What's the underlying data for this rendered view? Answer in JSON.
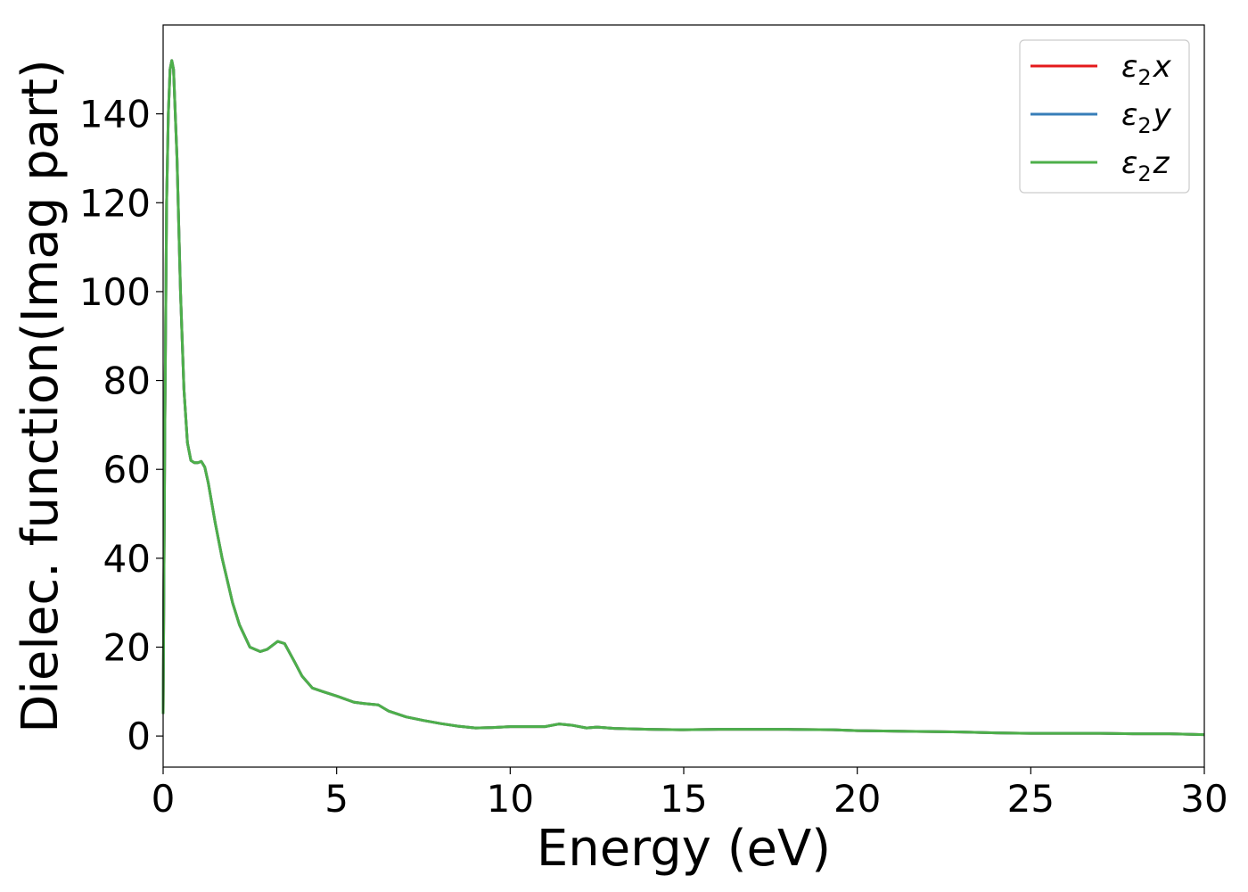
{
  "chart_data": {
    "type": "line",
    "title": "",
    "xlabel": "Energy (eV)",
    "ylabel": "Dielec. function(Imag part)",
    "xlim": [
      0,
      30
    ],
    "ylim": [
      -7,
      160
    ],
    "xticks": [
      0,
      5,
      10,
      15,
      20,
      25,
      30
    ],
    "yticks": [
      0,
      20,
      40,
      60,
      80,
      100,
      120,
      140
    ],
    "grid": false,
    "legend_position": "top-right",
    "series": [
      {
        "name": "ε₂x",
        "legend_base": "ε",
        "legend_sub": "2",
        "legend_suffix": "x",
        "color": "#e41a1c",
        "x": [
          0,
          0.05,
          0.1,
          0.15,
          0.2,
          0.25,
          0.3,
          0.4,
          0.5,
          0.6,
          0.7,
          0.8,
          0.9,
          1.0,
          1.1,
          1.2,
          1.3,
          1.5,
          1.7,
          2.0,
          2.2,
          2.5,
          2.8,
          3.0,
          3.3,
          3.5,
          3.8,
          4.0,
          4.3,
          4.6,
          5.0,
          5.5,
          5.8,
          6.2,
          6.5,
          7.0,
          7.5,
          8.0,
          8.5,
          9.0,
          9.5,
          10.0,
          10.5,
          11.0,
          11.4,
          11.8,
          12.2,
          12.5,
          13.0,
          14.0,
          15.0,
          16.0,
          17.0,
          18.0,
          19.3,
          20.0,
          21.0,
          22.0,
          23.0,
          24.0,
          25.0,
          26.0,
          27.0,
          28.0,
          29.0,
          30.0
        ],
        "y": [
          5,
          70,
          120,
          140,
          150,
          152,
          150,
          130,
          100,
          78,
          66,
          62,
          61.5,
          61.5,
          61.8,
          60.5,
          57,
          48,
          40,
          30,
          25,
          20,
          19,
          19.5,
          21.3,
          20.8,
          16.5,
          13.5,
          10.8,
          10,
          9,
          7.6,
          7.3,
          7.0,
          5.6,
          4.3,
          3.5,
          2.8,
          2.2,
          1.8,
          1.9,
          2.1,
          2.1,
          2.1,
          2.7,
          2.4,
          1.8,
          2.0,
          1.7,
          1.5,
          1.4,
          1.5,
          1.5,
          1.5,
          1.4,
          1.2,
          1.1,
          1.0,
          0.9,
          0.7,
          0.6,
          0.6,
          0.6,
          0.5,
          0.5,
          0.3
        ]
      },
      {
        "name": "ε₂y",
        "legend_base": "ε",
        "legend_sub": "2",
        "legend_suffix": "y",
        "color": "#377eb8",
        "x": [
          0,
          0.05,
          0.1,
          0.15,
          0.2,
          0.25,
          0.3,
          0.4,
          0.5,
          0.6,
          0.7,
          0.8,
          0.9,
          1.0,
          1.1,
          1.2,
          1.3,
          1.5,
          1.7,
          2.0,
          2.2,
          2.5,
          2.8,
          3.0,
          3.3,
          3.5,
          3.8,
          4.0,
          4.3,
          4.6,
          5.0,
          5.5,
          5.8,
          6.2,
          6.5,
          7.0,
          7.5,
          8.0,
          8.5,
          9.0,
          9.5,
          10.0,
          10.5,
          11.0,
          11.4,
          11.8,
          12.2,
          12.5,
          13.0,
          14.0,
          15.0,
          16.0,
          17.0,
          18.0,
          19.3,
          20.0,
          21.0,
          22.0,
          23.0,
          24.0,
          25.0,
          26.0,
          27.0,
          28.0,
          29.0,
          30.0
        ],
        "y": [
          5,
          70,
          120,
          140,
          150,
          152,
          150,
          130,
          100,
          78,
          66,
          62,
          61.5,
          61.5,
          61.8,
          60.5,
          57,
          48,
          40,
          30,
          25,
          20,
          19,
          19.5,
          21.3,
          20.8,
          16.5,
          13.5,
          10.8,
          10,
          9,
          7.6,
          7.3,
          7.0,
          5.6,
          4.3,
          3.5,
          2.8,
          2.2,
          1.8,
          1.9,
          2.1,
          2.1,
          2.1,
          2.7,
          2.4,
          1.8,
          2.0,
          1.7,
          1.5,
          1.4,
          1.5,
          1.5,
          1.5,
          1.4,
          1.2,
          1.1,
          1.0,
          0.9,
          0.7,
          0.6,
          0.6,
          0.6,
          0.5,
          0.5,
          0.3
        ]
      },
      {
        "name": "ε₂z",
        "legend_base": "ε",
        "legend_sub": "2",
        "legend_suffix": "z",
        "color": "#4daf4a",
        "x": [
          0,
          0.05,
          0.1,
          0.15,
          0.2,
          0.25,
          0.3,
          0.4,
          0.5,
          0.6,
          0.7,
          0.8,
          0.9,
          1.0,
          1.1,
          1.2,
          1.3,
          1.5,
          1.7,
          2.0,
          2.2,
          2.5,
          2.8,
          3.0,
          3.3,
          3.5,
          3.8,
          4.0,
          4.3,
          4.6,
          5.0,
          5.5,
          5.8,
          6.2,
          6.5,
          7.0,
          7.5,
          8.0,
          8.5,
          9.0,
          9.5,
          10.0,
          10.5,
          11.0,
          11.4,
          11.8,
          12.2,
          12.5,
          13.0,
          14.0,
          15.0,
          16.0,
          17.0,
          18.0,
          19.3,
          20.0,
          21.0,
          22.0,
          23.0,
          24.0,
          25.0,
          26.0,
          27.0,
          28.0,
          29.0,
          30.0
        ],
        "y": [
          5,
          70,
          120,
          140,
          150,
          152,
          150,
          130,
          100,
          78,
          66,
          62,
          61.5,
          61.5,
          61.8,
          60.5,
          57,
          48,
          40,
          30,
          25,
          20,
          19,
          19.5,
          21.3,
          20.8,
          16.5,
          13.5,
          10.8,
          10,
          9,
          7.6,
          7.3,
          7.0,
          5.6,
          4.3,
          3.5,
          2.8,
          2.2,
          1.8,
          1.9,
          2.1,
          2.1,
          2.1,
          2.7,
          2.4,
          1.8,
          2.0,
          1.7,
          1.5,
          1.4,
          1.5,
          1.5,
          1.5,
          1.4,
          1.2,
          1.1,
          1.0,
          0.9,
          0.7,
          0.6,
          0.6,
          0.6,
          0.5,
          0.5,
          0.3
        ]
      }
    ]
  }
}
